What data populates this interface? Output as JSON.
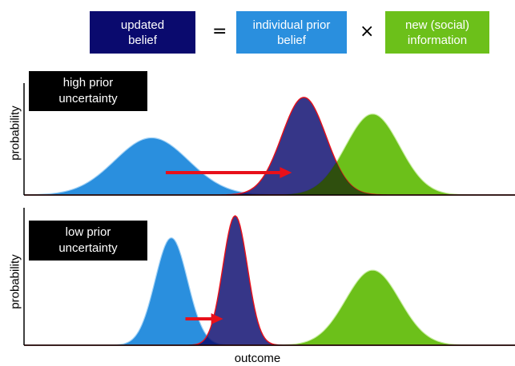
{
  "equation": {
    "updated_belief": "updated\nbelief",
    "equals": "=",
    "individual_prior": "individual prior\nbelief",
    "times": "×",
    "new_information": "new (social)\ninformation"
  },
  "panels": [
    {
      "label": "high prior\nuncertainty",
      "ylabel": "probability",
      "prior": {
        "mean": 0.26,
        "sd": 0.075,
        "peak": 0.55
      },
      "social": {
        "mean": 0.71,
        "sd": 0.055,
        "peak": 0.78
      },
      "posterior": {
        "mean": 0.57,
        "sd": 0.045,
        "peak": 0.94
      }
    },
    {
      "label": "low prior\nuncertainty",
      "ylabel": "probability",
      "prior": {
        "mean": 0.3,
        "sd": 0.033,
        "peak": 0.83
      },
      "social": {
        "mean": 0.71,
        "sd": 0.055,
        "peak": 0.58
      },
      "posterior": {
        "mean": 0.43,
        "sd": 0.025,
        "peak": 1.0
      }
    }
  ],
  "xlabel": "outcome",
  "colors": {
    "updated": "#0a0a6e",
    "prior": "#2a8fde",
    "social": "#6cc01a",
    "overlap": "#2f4f0e",
    "arrow": "#e8101a",
    "outline": "#e8101a"
  }
}
